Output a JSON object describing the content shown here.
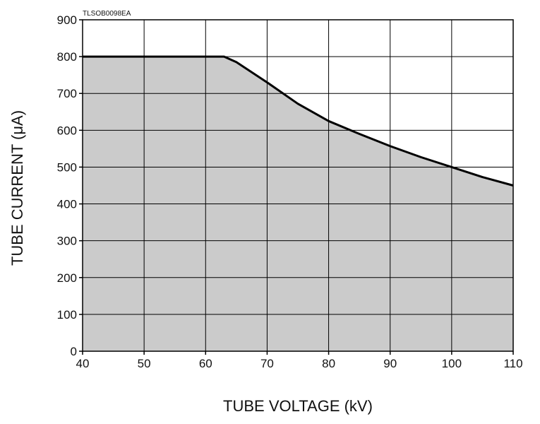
{
  "chart_data": {
    "type": "area",
    "code_label": "TLSOB0098EA",
    "xlabel": "TUBE VOLTAGE (kV)",
    "ylabel": "TUBE CURRENT (μA)",
    "xlim": [
      40,
      110
    ],
    "ylim": [
      0,
      900
    ],
    "x_ticks": [
      40,
      50,
      60,
      70,
      80,
      90,
      100,
      110
    ],
    "y_ticks": [
      0,
      100,
      200,
      300,
      400,
      500,
      600,
      700,
      800,
      900
    ],
    "grid": true,
    "legend": "none",
    "series": [
      {
        "x": [
          40,
          63,
          65,
          70,
          75,
          80,
          85,
          90,
          95,
          100,
          105,
          110
        ],
        "y": [
          800,
          800,
          785,
          730,
          672,
          625,
          590,
          557,
          527,
          500,
          473,
          450
        ],
        "fill": "#cbcbcb",
        "line_color": "#000000"
      }
    ]
  }
}
